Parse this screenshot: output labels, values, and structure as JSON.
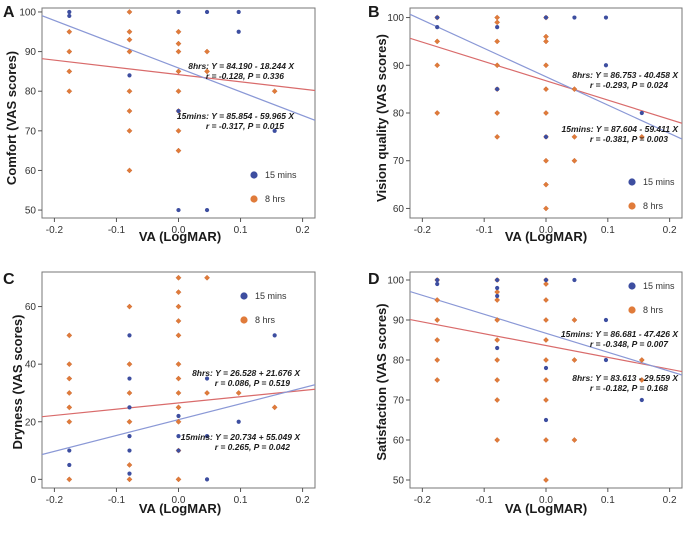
{
  "colors": {
    "s15": "#3d4ea0",
    "s8": "#e07b3a",
    "fit15": "#8a98d6",
    "fit8": "#d96b6b",
    "eq15": "#4a6fc2",
    "eq8": "#c0392b"
  },
  "chart_data": [
    {
      "type": "scatter",
      "panel": "A",
      "xlabel": "VA (LogMAR)",
      "ylabel": "Comfort (VAS scores)",
      "xlim": [
        -0.22,
        0.22
      ],
      "ylim": [
        48,
        101
      ],
      "xticks": [
        -0.2,
        -0.1,
        0.0,
        0.1,
        0.2
      ],
      "xtick_labels": [
        "-0.2",
        "-0.1",
        "0.0",
        "0.1",
        "0.2"
      ],
      "yticks": [
        50,
        60,
        70,
        80,
        90,
        100
      ],
      "ytick_labels": [
        "50",
        "60",
        "70",
        "80",
        "90",
        "100"
      ],
      "legend": {
        "position": "right",
        "items": [
          "15 mins",
          "8 hrs"
        ]
      },
      "series": [
        {
          "name": "15 mins",
          "fit": {
            "intercept": 85.854,
            "slope": -59.965
          },
          "equation": "15mins: Y = 85.854 - 59.965 X",
          "stats": "r = -0.317,  P = 0.015",
          "points": [
            [
              -0.176,
              100
            ],
            [
              -0.176,
              99
            ],
            [
              -0.079,
              84
            ],
            [
              0,
              100
            ],
            [
              0,
              75
            ],
            [
              0,
              50
            ],
            [
              0.046,
              100
            ],
            [
              0.046,
              50
            ],
            [
              0.097,
              100
            ],
            [
              0.097,
              95
            ],
            [
              0.155,
              70
            ]
          ]
        },
        {
          "name": "8 hrs",
          "fit": {
            "intercept": 84.19,
            "slope": -18.244
          },
          "equation": "8hrs: Y = 84.190 - 18.244 X",
          "stats": "r = -0.128,  P = 0.336",
          "points": [
            [
              -0.176,
              95
            ],
            [
              -0.176,
              90
            ],
            [
              -0.176,
              85
            ],
            [
              -0.176,
              80
            ],
            [
              -0.079,
              100
            ],
            [
              -0.079,
              95
            ],
            [
              -0.079,
              93
            ],
            [
              -0.079,
              90
            ],
            [
              -0.079,
              80
            ],
            [
              -0.079,
              75
            ],
            [
              -0.079,
              70
            ],
            [
              -0.079,
              60
            ],
            [
              0,
              95
            ],
            [
              0,
              92
            ],
            [
              0,
              90
            ],
            [
              0,
              85
            ],
            [
              0,
              80
            ],
            [
              0,
              75
            ],
            [
              0,
              70
            ],
            [
              0,
              65
            ],
            [
              0.046,
              90
            ],
            [
              0.046,
              85
            ],
            [
              0.155,
              80
            ]
          ]
        }
      ]
    },
    {
      "type": "scatter",
      "panel": "B",
      "xlabel": "VA (LogMAR)",
      "ylabel": "Vision quality (VAS scores)",
      "xlim": [
        -0.22,
        0.22
      ],
      "ylim": [
        58,
        102
      ],
      "xticks": [
        -0.2,
        -0.1,
        0.0,
        0.1,
        0.2
      ],
      "xtick_labels": [
        "-0.2",
        "-0.1",
        "0.0",
        "0.1",
        "0.2"
      ],
      "yticks": [
        60,
        70,
        80,
        90,
        100
      ],
      "ytick_labels": [
        "60",
        "70",
        "80",
        "90",
        "100"
      ],
      "legend": {
        "position": "bottom-right",
        "items": [
          "15 mins",
          "8 hrs"
        ]
      },
      "series": [
        {
          "name": "15 mins",
          "fit": {
            "intercept": 87.604,
            "slope": -59.411
          },
          "equation": "15mins: Y = 87.604 - 59.411 X",
          "stats": "r = -0.381,  P = 0.003",
          "points": [
            [
              -0.176,
              100
            ],
            [
              -0.176,
              98
            ],
            [
              -0.079,
              98
            ],
            [
              -0.079,
              85
            ],
            [
              0,
              100
            ],
            [
              0,
              75
            ],
            [
              0.046,
              100
            ],
            [
              0.097,
              100
            ],
            [
              0.097,
              90
            ],
            [
              0.155,
              80
            ]
          ]
        },
        {
          "name": "8 hrs",
          "fit": {
            "intercept": 86.753,
            "slope": -40.458
          },
          "equation": "8hrs: Y = 86.753 - 40.458 X",
          "stats": "r = -0.293,  P = 0.024",
          "points": [
            [
              -0.176,
              100
            ],
            [
              -0.176,
              95
            ],
            [
              -0.176,
              90
            ],
            [
              -0.176,
              80
            ],
            [
              -0.079,
              100
            ],
            [
              -0.079,
              99
            ],
            [
              -0.079,
              95
            ],
            [
              -0.079,
              90
            ],
            [
              -0.079,
              85
            ],
            [
              -0.079,
              80
            ],
            [
              -0.079,
              75
            ],
            [
              0,
              100
            ],
            [
              0,
              96
            ],
            [
              0,
              95
            ],
            [
              0,
              90
            ],
            [
              0,
              85
            ],
            [
              0,
              80
            ],
            [
              0,
              75
            ],
            [
              0,
              70
            ],
            [
              0,
              65
            ],
            [
              0,
              60
            ],
            [
              0.046,
              85
            ],
            [
              0.046,
              75
            ],
            [
              0.046,
              70
            ],
            [
              0.155,
              75
            ]
          ]
        }
      ]
    },
    {
      "type": "scatter",
      "panel": "C",
      "xlabel": "VA (LogMAR)",
      "ylabel": "Dryness (VAS scores)",
      "xlim": [
        -0.22,
        0.22
      ],
      "ylim": [
        -3,
        72
      ],
      "xticks": [
        -0.2,
        -0.1,
        0.0,
        0.1,
        0.2
      ],
      "xtick_labels": [
        "-0.2",
        "-0.1",
        "0.0",
        "0.1",
        "0.2"
      ],
      "yticks": [
        0,
        20,
        40,
        60
      ],
      "ytick_labels": [
        "0",
        "20",
        "40",
        "60"
      ],
      "legend": {
        "position": "top-right",
        "items": [
          "15 mins",
          "8 hrs"
        ]
      },
      "series": [
        {
          "name": "15 mins",
          "fit": {
            "intercept": 20.734,
            "slope": 55.049
          },
          "equation": "15mins: Y = 20.734 + 55.049 X",
          "stats": "r = 0.265,  P = 0.042",
          "points": [
            [
              -0.176,
              10
            ],
            [
              -0.176,
              5
            ],
            [
              -0.079,
              50
            ],
            [
              -0.079,
              35
            ],
            [
              -0.079,
              25
            ],
            [
              -0.079,
              15
            ],
            [
              -0.079,
              10
            ],
            [
              -0.079,
              2
            ],
            [
              0,
              22
            ],
            [
              0,
              15
            ],
            [
              0,
              10
            ],
            [
              0.046,
              35
            ],
            [
              0.046,
              15
            ],
            [
              0.046,
              0
            ],
            [
              0.097,
              20
            ],
            [
              0.155,
              50
            ]
          ]
        },
        {
          "name": "8 hrs",
          "fit": {
            "intercept": 26.528,
            "slope": 21.676
          },
          "equation": "8hrs: Y = 26.528 + 21.676 X",
          "stats": "r = 0.086,  P = 0.519",
          "points": [
            [
              -0.176,
              50
            ],
            [
              -0.176,
              40
            ],
            [
              -0.176,
              35
            ],
            [
              -0.176,
              30
            ],
            [
              -0.176,
              25
            ],
            [
              -0.176,
              20
            ],
            [
              -0.176,
              0
            ],
            [
              -0.079,
              60
            ],
            [
              -0.079,
              40
            ],
            [
              -0.079,
              30
            ],
            [
              -0.079,
              20
            ],
            [
              -0.079,
              5
            ],
            [
              -0.079,
              0
            ],
            [
              0,
              70
            ],
            [
              0,
              65
            ],
            [
              0,
              60
            ],
            [
              0,
              55
            ],
            [
              0,
              50
            ],
            [
              0,
              40
            ],
            [
              0,
              35
            ],
            [
              0,
              30
            ],
            [
              0,
              25
            ],
            [
              0,
              20
            ],
            [
              0,
              10
            ],
            [
              0,
              0
            ],
            [
              0.046,
              70
            ],
            [
              0.046,
              30
            ],
            [
              0.097,
              30
            ],
            [
              0.155,
              25
            ]
          ]
        }
      ]
    },
    {
      "type": "scatter",
      "panel": "D",
      "xlabel": "VA (LogMAR)",
      "ylabel": "Satisfaction (VAS scores)",
      "xlim": [
        -0.22,
        0.22
      ],
      "ylim": [
        48,
        102
      ],
      "xticks": [
        -0.2,
        -0.1,
        0.0,
        0.1,
        0.2
      ],
      "xtick_labels": [
        "-0.2",
        "-0.1",
        "0.0",
        "0.1",
        "0.2"
      ],
      "yticks": [
        50,
        60,
        70,
        80,
        90,
        100
      ],
      "ytick_labels": [
        "50",
        "60",
        "70",
        "80",
        "90",
        "100"
      ],
      "legend": {
        "position": "top-right",
        "items": [
          "15 mins",
          "8 hrs"
        ]
      },
      "series": [
        {
          "name": "15 mins",
          "fit": {
            "intercept": 86.681,
            "slope": -47.426
          },
          "equation": "15mins: Y = 86.681 - 47.426 X",
          "stats": "r = -0.348,  P = 0.007",
          "points": [
            [
              -0.176,
              100
            ],
            [
              -0.176,
              99
            ],
            [
              -0.079,
              100
            ],
            [
              -0.079,
              98
            ],
            [
              -0.079,
              96
            ],
            [
              -0.079,
              83
            ],
            [
              0,
              100
            ],
            [
              0,
              78
            ],
            [
              0,
              65
            ],
            [
              0.046,
              100
            ],
            [
              0.097,
              90
            ],
            [
              0.097,
              80
            ],
            [
              0.155,
              70
            ]
          ]
        },
        {
          "name": "8 hrs",
          "fit": {
            "intercept": 83.613,
            "slope": -29.559
          },
          "equation": "8hrs: Y = 83.613 - 29.559 X",
          "stats": "r = -0.182,  P = 0.168",
          "points": [
            [
              -0.176,
              100
            ],
            [
              -0.176,
              95
            ],
            [
              -0.176,
              90
            ],
            [
              -0.176,
              85
            ],
            [
              -0.176,
              80
            ],
            [
              -0.176,
              75
            ],
            [
              -0.079,
              100
            ],
            [
              -0.079,
              97
            ],
            [
              -0.079,
              95
            ],
            [
              -0.079,
              90
            ],
            [
              -0.079,
              85
            ],
            [
              -0.079,
              80
            ],
            [
              -0.079,
              75
            ],
            [
              -0.079,
              70
            ],
            [
              -0.079,
              60
            ],
            [
              0,
              100
            ],
            [
              0,
              99
            ],
            [
              0,
              95
            ],
            [
              0,
              90
            ],
            [
              0,
              85
            ],
            [
              0,
              80
            ],
            [
              0,
              75
            ],
            [
              0,
              70
            ],
            [
              0,
              60
            ],
            [
              0,
              50
            ],
            [
              0.046,
              90
            ],
            [
              0.046,
              80
            ],
            [
              0.046,
              60
            ],
            [
              0.155,
              80
            ],
            [
              0.155,
              75
            ]
          ]
        }
      ]
    }
  ]
}
